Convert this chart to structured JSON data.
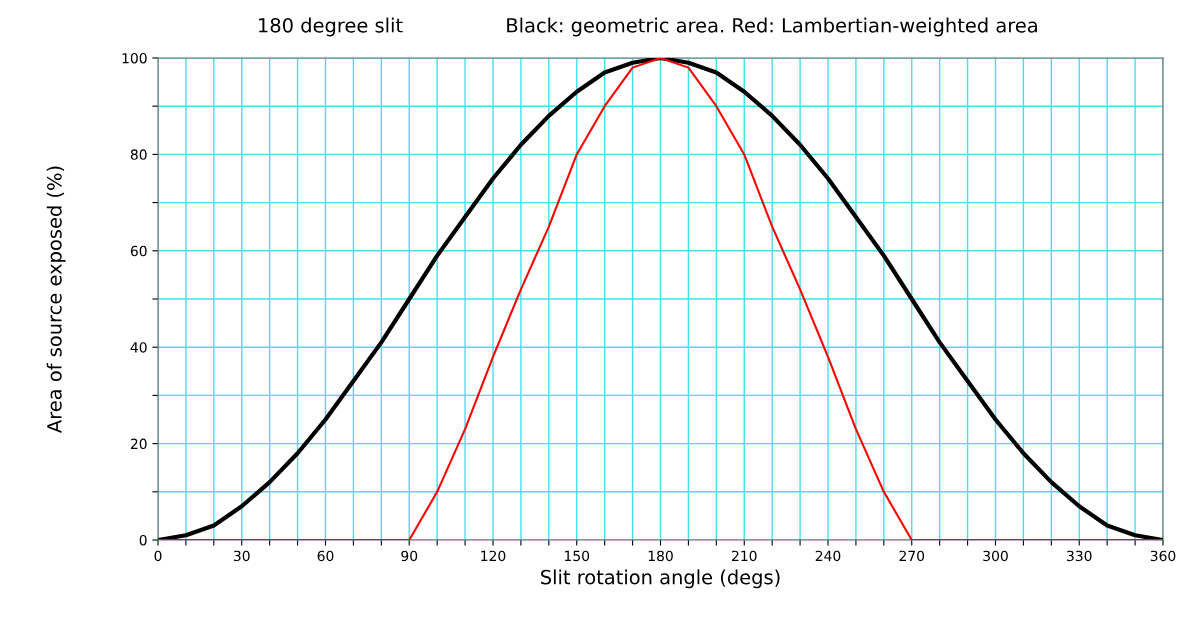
{
  "chart_data": {
    "type": "line",
    "title": "180 degree slit",
    "subtitle": "Black: geometric area. Red: Lambertian-weighted area",
    "xlabel": "Slit rotation angle (degs)",
    "ylabel": "Area of source exposed (%)",
    "x": [
      0,
      10,
      20,
      30,
      40,
      50,
      60,
      70,
      80,
      90,
      100,
      110,
      120,
      130,
      140,
      150,
      160,
      170,
      180,
      190,
      200,
      210,
      220,
      230,
      240,
      250,
      260,
      270,
      280,
      290,
      300,
      310,
      320,
      330,
      340,
      350,
      360
    ],
    "series": [
      {
        "color": "#000000",
        "values": [
          0,
          1,
          3,
          7,
          12,
          18,
          25,
          33,
          41,
          50,
          59,
          67,
          75,
          82,
          88,
          93,
          97,
          99,
          100,
          99,
          97,
          93,
          88,
          82,
          75,
          67,
          59,
          50,
          41,
          33,
          25,
          18,
          12,
          7,
          3,
          1,
          0
        ]
      },
      {
        "color": "#ff0000",
        "values": [
          0,
          0,
          0,
          0,
          0,
          0,
          0,
          0,
          0,
          0,
          10,
          23,
          38,
          52,
          65,
          80,
          90,
          98,
          100,
          98,
          90,
          80,
          65,
          52,
          38,
          23,
          10,
          0,
          0,
          0,
          0,
          0,
          0,
          0,
          0,
          0,
          0
        ]
      }
    ],
    "xlim": [
      0,
      360
    ],
    "xticks": [
      0,
      {
        "value": 10,
        "label": null
      },
      {
        "value": 20,
        "label": null
      },
      30,
      {
        "value": 40,
        "label": null
      },
      {
        "value": 50,
        "label": null
      },
      60,
      {
        "value": 70,
        "label": null
      },
      {
        "value": 80,
        "label": null
      },
      90,
      {
        "value": 100,
        "label": null
      },
      {
        "value": 110,
        "label": null
      },
      120,
      {
        "value": 130,
        "label": null
      },
      {
        "value": 140,
        "label": null
      },
      150,
      {
        "value": 160,
        "label": null
      },
      {
        "value": 170,
        "label": null
      },
      180,
      {
        "value": 190,
        "label": null
      },
      {
        "value": 200,
        "label": null
      },
      210,
      {
        "value": 220,
        "label": null
      },
      {
        "value": 230,
        "label": null
      },
      240,
      {
        "value": 250,
        "label": null
      },
      {
        "value": 260,
        "label": null
      },
      270,
      {
        "value": 280,
        "label": null
      },
      {
        "value": 290,
        "label": null
      },
      300,
      {
        "value": 310,
        "label": null
      },
      {
        "value": 320,
        "label": null
      },
      330,
      {
        "value": 340,
        "label": null
      },
      {
        "value": 350,
        "label": null
      },
      360
    ],
    "ylim": [
      0,
      100
    ],
    "yticks": [
      0,
      {
        "value": 10,
        "label": null
      },
      20,
      {
        "value": 30,
        "label": null
      },
      40,
      {
        "value": 50,
        "label": null
      },
      60,
      {
        "value": 70,
        "label": null
      },
      80,
      {
        "value": 90,
        "label": null
      },
      100
    ],
    "grid": true,
    "marker": "none",
    "line_style": "solid"
  }
}
